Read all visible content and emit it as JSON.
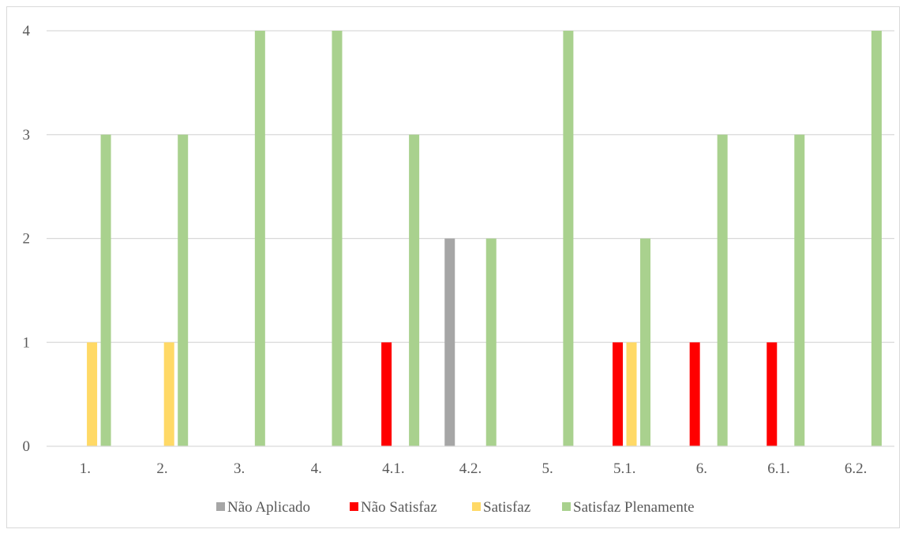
{
  "chart_data": {
    "type": "bar",
    "categories": [
      "1.",
      "2.",
      "3.",
      "4.",
      "4.1.",
      "4.2.",
      "5.",
      "5.1.",
      "6.",
      "6.1.",
      "6.2."
    ],
    "series": [
      {
        "name": "Não Aplicado",
        "color": "#a6a6a6",
        "values": [
          0,
          0,
          0,
          0,
          0,
          2,
          0,
          0,
          0,
          0,
          0
        ]
      },
      {
        "name": "Não Satisfaz",
        "color": "#ff0000",
        "values": [
          0,
          0,
          0,
          0,
          1,
          0,
          0,
          1,
          1,
          1,
          0
        ]
      },
      {
        "name": "Satisfaz",
        "color": "#ffd966",
        "values": [
          1,
          1,
          0,
          0,
          0,
          0,
          0,
          1,
          0,
          0,
          0
        ]
      },
      {
        "name": "Satisfaz Plenamente",
        "color": "#a9d18e",
        "values": [
          3,
          3,
          4,
          4,
          3,
          2,
          4,
          2,
          3,
          3,
          4
        ]
      }
    ],
    "yticks": [
      0,
      1,
      2,
      3,
      4
    ],
    "ylim": [
      0,
      4
    ],
    "grid": true,
    "legend_position": "bottom"
  }
}
